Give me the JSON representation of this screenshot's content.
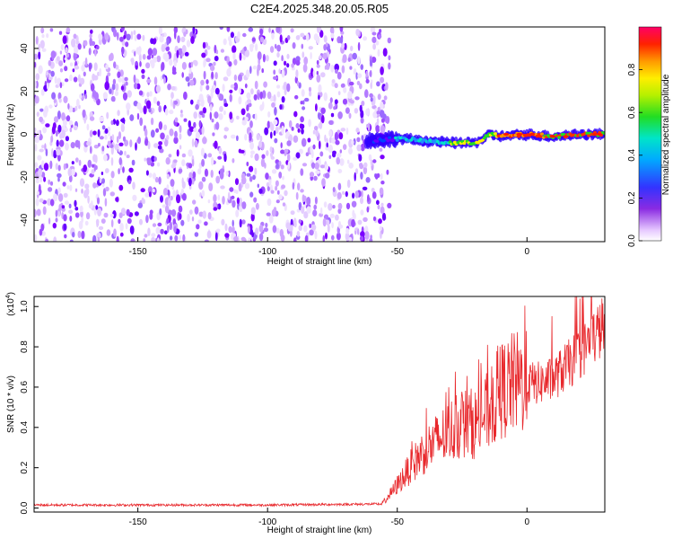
{
  "title": "C2E4.2025.348.20.05.R05",
  "chart_data": [
    {
      "type": "heatmap",
      "xlabel": "Height of straight line (km)",
      "ylabel": "Frequency (Hz)",
      "xlim": [
        -190,
        30
      ],
      "ylim": [
        -50,
        50
      ],
      "xticks": [
        -150,
        -100,
        -50,
        0
      ],
      "yticks": [
        -40,
        -20,
        0,
        20,
        40
      ],
      "noise_region_x": [
        -190,
        -55
      ],
      "signal_band": {
        "x_start": -62,
        "x_end": 30,
        "center_freq": [
          {
            "x": -62,
            "f": -3
          },
          {
            "x": -50,
            "f": -2
          },
          {
            "x": -40,
            "f": -3
          },
          {
            "x": -30,
            "f": -4
          },
          {
            "x": -20,
            "f": -4
          },
          {
            "x": -14,
            "f": 0
          },
          {
            "x": -10,
            "f": -1
          },
          {
            "x": 0,
            "f": 0
          },
          {
            "x": 10,
            "f": -1
          },
          {
            "x": 20,
            "f": 0
          },
          {
            "x": 30,
            "f": 0
          }
        ]
      },
      "colorbar": {
        "label": "Normalized spectral amplitude",
        "range": [
          0,
          1
        ],
        "ticks": [
          "0.0",
          "0.2",
          "0.4",
          "0.6",
          "0.8"
        ],
        "tick_values": [
          0,
          0.2,
          0.4,
          0.6,
          0.8
        ]
      }
    },
    {
      "type": "line",
      "xlabel": "Height of straight line (km)",
      "ylabel": "SNR (10 * v/v)",
      "y_scale_label": "(x10",
      "y_scale_exp": "4",
      "xlim": [
        -190,
        30
      ],
      "ylim": [
        -0.02,
        1.05
      ],
      "xticks": [
        -150,
        -100,
        -50,
        0
      ],
      "yticks": [
        "0.0",
        "0.2",
        "0.4",
        "0.6",
        "0.8",
        "1.0"
      ],
      "ytick_values": [
        0,
        0.2,
        0.4,
        0.6,
        0.8,
        1.0
      ],
      "color": "#e8282c",
      "series": [
        {
          "name": "SNR",
          "x": [
            -190,
            -100,
            -56,
            -52,
            -45,
            -40,
            -35,
            -30,
            -25,
            -20,
            -15,
            -10,
            -5,
            0,
            5,
            10,
            15,
            20,
            25,
            30
          ],
          "values": [
            0.015,
            0.015,
            0.02,
            0.08,
            0.2,
            0.28,
            0.33,
            0.38,
            0.42,
            0.42,
            0.48,
            0.58,
            0.62,
            0.62,
            0.62,
            0.64,
            0.7,
            0.76,
            0.84,
            0.91
          ]
        }
      ]
    }
  ]
}
